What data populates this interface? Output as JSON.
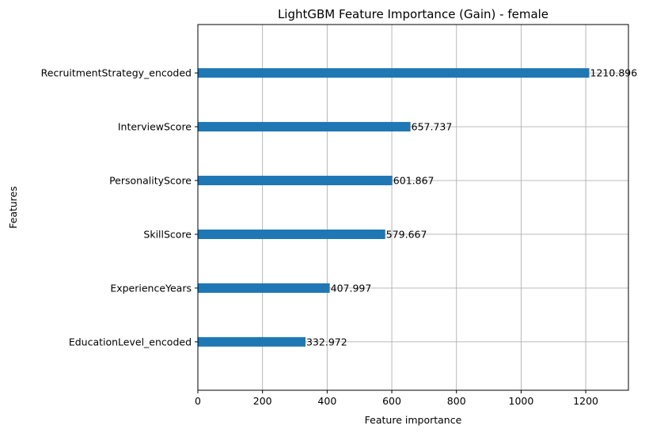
{
  "chart_data": {
    "type": "bar",
    "orientation": "horizontal",
    "title": "LightGBM Feature Importance (Gain) - female",
    "xlabel": "Feature importance",
    "ylabel": "Features",
    "categories": [
      "RecruitmentStrategy_encoded",
      "InterviewScore",
      "PersonalityScore",
      "SkillScore",
      "ExperienceYears",
      "EducationLevel_encoded"
    ],
    "values": [
      1210.896,
      657.737,
      601.867,
      579.667,
      407.997,
      332.972
    ],
    "value_labels": [
      "1210.896",
      "657.737",
      "601.867",
      "579.667",
      "407.997",
      "332.972"
    ],
    "xlim": [
      0,
      1332
    ],
    "xticks": [
      0,
      200,
      400,
      600,
      800,
      1000,
      1200
    ],
    "xtick_labels": [
      "0",
      "200",
      "400",
      "600",
      "800",
      "1000",
      "1200"
    ],
    "grid": true,
    "bar_color": "#1f77b4"
  }
}
